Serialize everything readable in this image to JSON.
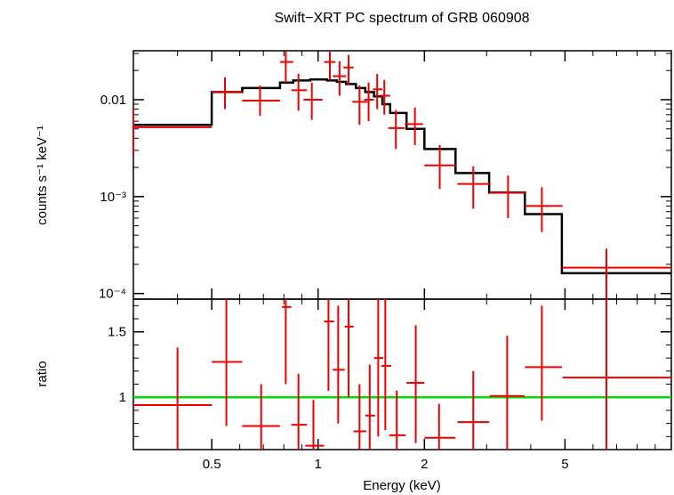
{
  "chart_data": [
    {
      "type": "scatter",
      "panel": "spectrum",
      "title": "Swift−XRT PC spectrum of GRB 060908",
      "ylabel": "counts s⁻¹ keV⁻¹",
      "xscale": "log",
      "yscale": "log",
      "xlim": [
        0.3,
        10
      ],
      "ylim": [
        8.75e-05,
        0.032
      ],
      "ytick_labels": [
        "0.01",
        "10⁻³",
        "10⁻⁴"
      ],
      "ytick_values": [
        0.01,
        0.001,
        0.0001
      ],
      "colors": {
        "data": "#ee0000",
        "model": "#000000"
      },
      "data": [
        {
          "x": 0.3,
          "xlo": 0.3,
          "xhi": 0.5,
          "y": 0.0052,
          "ylo": 0.0027,
          "yhi": 0.008
        },
        {
          "x": 0.545,
          "xlo": 0.5,
          "xhi": 0.61,
          "y": 0.012,
          "ylo": 0.008,
          "yhi": 0.017
        },
        {
          "x": 0.685,
          "xlo": 0.61,
          "xhi": 0.78,
          "y": 0.0098,
          "ylo": 0.0068,
          "yhi": 0.014
        },
        {
          "x": 0.81,
          "xlo": 0.78,
          "xhi": 0.85,
          "y": 0.0245,
          "ylo": 0.015,
          "yhi": 0.032
        },
        {
          "x": 0.88,
          "xlo": 0.84,
          "xhi": 0.93,
          "y": 0.0125,
          "ylo": 0.0077,
          "yhi": 0.0185
        },
        {
          "x": 0.96,
          "xlo": 0.91,
          "xhi": 1.03,
          "y": 0.01,
          "ylo": 0.0062,
          "yhi": 0.015
        },
        {
          "x": 1.08,
          "xlo": 1.04,
          "xhi": 1.12,
          "y": 0.0245,
          "ylo": 0.016,
          "yhi": 0.032
        },
        {
          "x": 1.15,
          "xlo": 1.1,
          "xhi": 1.2,
          "y": 0.0175,
          "ylo": 0.011,
          "yhi": 0.025
        },
        {
          "x": 1.22,
          "xlo": 1.18,
          "xhi": 1.26,
          "y": 0.0215,
          "ylo": 0.014,
          "yhi": 0.029
        },
        {
          "x": 1.31,
          "xlo": 1.25,
          "xhi": 1.38,
          "y": 0.0095,
          "ylo": 0.0055,
          "yhi": 0.014
        },
        {
          "x": 1.39,
          "xlo": 1.35,
          "xhi": 1.44,
          "y": 0.01,
          "ylo": 0.006,
          "yhi": 0.015
        },
        {
          "x": 1.47,
          "xlo": 1.43,
          "xhi": 1.52,
          "y": 0.0128,
          "ylo": 0.008,
          "yhi": 0.0185
        },
        {
          "x": 1.54,
          "xlo": 1.5,
          "xhi": 1.6,
          "y": 0.011,
          "ylo": 0.007,
          "yhi": 0.016
        },
        {
          "x": 1.66,
          "xlo": 1.58,
          "xhi": 1.76,
          "y": 0.0051,
          "ylo": 0.0031,
          "yhi": 0.0078
        },
        {
          "x": 1.88,
          "xlo": 1.76,
          "xhi": 1.98,
          "y": 0.0056,
          "ylo": 0.0034,
          "yhi": 0.0083
        },
        {
          "x": 2.21,
          "xlo": 2.0,
          "xhi": 2.46,
          "y": 0.0021,
          "ylo": 0.0012,
          "yhi": 0.0034
        },
        {
          "x": 2.75,
          "xlo": 2.48,
          "xhi": 3.08,
          "y": 0.00135,
          "ylo": 0.00075,
          "yhi": 0.00205
        },
        {
          "x": 3.45,
          "xlo": 3.06,
          "xhi": 3.85,
          "y": 0.0011,
          "ylo": 0.0006,
          "yhi": 0.00165
        },
        {
          "x": 4.3,
          "xlo": 3.85,
          "xhi": 4.92,
          "y": 0.0008,
          "ylo": 0.00043,
          "yhi": 0.00125
        },
        {
          "x": 6.55,
          "xlo": 4.92,
          "xhi": 10.0,
          "y": 0.000185,
          "ylo": 8.5e-05,
          "yhi": 0.00029
        }
      ],
      "model_steps": [
        {
          "xlo": 0.3,
          "xhi": 0.5,
          "y": 0.0055
        },
        {
          "xlo": 0.5,
          "xhi": 0.61,
          "y": 0.012
        },
        {
          "xlo": 0.61,
          "xhi": 0.78,
          "y": 0.0132
        },
        {
          "xlo": 0.78,
          "xhi": 0.85,
          "y": 0.015
        },
        {
          "xlo": 0.85,
          "xhi": 0.95,
          "y": 0.0158
        },
        {
          "xlo": 0.95,
          "xhi": 1.06,
          "y": 0.0162
        },
        {
          "xlo": 1.06,
          "xhi": 1.13,
          "y": 0.0158
        },
        {
          "xlo": 1.13,
          "xhi": 1.2,
          "y": 0.0153
        },
        {
          "xlo": 1.2,
          "xhi": 1.28,
          "y": 0.0145
        },
        {
          "xlo": 1.28,
          "xhi": 1.36,
          "y": 0.0132
        },
        {
          "xlo": 1.36,
          "xhi": 1.44,
          "y": 0.012
        },
        {
          "xlo": 1.44,
          "xhi": 1.52,
          "y": 0.0108
        },
        {
          "xlo": 1.52,
          "xhi": 1.6,
          "y": 0.009
        },
        {
          "xlo": 1.6,
          "xhi": 1.78,
          "y": 0.0073
        },
        {
          "xlo": 1.78,
          "xhi": 2.0,
          "y": 0.005
        },
        {
          "xlo": 2.0,
          "xhi": 2.45,
          "y": 0.0031
        },
        {
          "xlo": 2.45,
          "xhi": 3.05,
          "y": 0.00175
        },
        {
          "xlo": 3.05,
          "xhi": 3.85,
          "y": 0.0011
        },
        {
          "xlo": 3.85,
          "xhi": 4.9,
          "y": 0.00066
        },
        {
          "xlo": 4.9,
          "xhi": 10.0,
          "y": 0.000162
        }
      ]
    },
    {
      "type": "scatter",
      "panel": "ratio",
      "xlabel": "Energy (keV)",
      "ylabel": "ratio",
      "xscale": "log",
      "xlim": [
        0.3,
        10
      ],
      "ylim": [
        0.6,
        1.75
      ],
      "xtick_labels": [
        "0.5",
        "1",
        "2",
        "5"
      ],
      "xtick_values": [
        0.5,
        1,
        2,
        5
      ],
      "ytick_labels": [
        "1",
        "1.5"
      ],
      "ytick_values": [
        1,
        1.5
      ],
      "reference_line": 1,
      "colors": {
        "data": "#ee0000",
        "reference": "#00dd00"
      },
      "data": [
        {
          "x": 0.4,
          "xlo": 0.3,
          "xhi": 0.5,
          "y": 0.94,
          "ylo": 0.6,
          "yhi": 1.38
        },
        {
          "x": 0.55,
          "xlo": 0.5,
          "xhi": 0.61,
          "y": 1.27,
          "ylo": 0.78,
          "yhi": 1.75
        },
        {
          "x": 0.69,
          "xlo": 0.61,
          "xhi": 0.78,
          "y": 0.78,
          "ylo": 0.6,
          "yhi": 1.1
        },
        {
          "x": 0.81,
          "xlo": 0.79,
          "xhi": 0.84,
          "y": 1.69,
          "ylo": 1.1,
          "yhi": 1.75
        },
        {
          "x": 0.88,
          "xlo": 0.84,
          "xhi": 0.93,
          "y": 0.79,
          "ylo": 0.6,
          "yhi": 1.18
        },
        {
          "x": 0.97,
          "xlo": 0.92,
          "xhi": 1.04,
          "y": 0.63,
          "ylo": 0.6,
          "yhi": 0.98
        },
        {
          "x": 1.07,
          "xlo": 1.04,
          "xhi": 1.11,
          "y": 1.58,
          "ylo": 1.05,
          "yhi": 1.75
        },
        {
          "x": 1.14,
          "xlo": 1.1,
          "xhi": 1.19,
          "y": 1.21,
          "ylo": 0.8,
          "yhi": 1.7
        },
        {
          "x": 1.22,
          "xlo": 1.19,
          "xhi": 1.26,
          "y": 1.54,
          "ylo": 1.0,
          "yhi": 1.75
        },
        {
          "x": 1.31,
          "xlo": 1.26,
          "xhi": 1.37,
          "y": 0.74,
          "ylo": 0.6,
          "yhi": 1.1
        },
        {
          "x": 1.4,
          "xlo": 1.36,
          "xhi": 1.45,
          "y": 0.86,
          "ylo": 0.6,
          "yhi": 1.25
        },
        {
          "x": 1.48,
          "xlo": 1.44,
          "xhi": 1.53,
          "y": 1.3,
          "ylo": 0.7,
          "yhi": 1.75
        },
        {
          "x": 1.55,
          "xlo": 1.51,
          "xhi": 1.61,
          "y": 1.24,
          "ylo": 0.75,
          "yhi": 1.75
        },
        {
          "x": 1.67,
          "xlo": 1.59,
          "xhi": 1.77,
          "y": 0.71,
          "ylo": 0.6,
          "yhi": 1.05
        },
        {
          "x": 1.89,
          "xlo": 1.78,
          "xhi": 2.0,
          "y": 1.11,
          "ylo": 0.65,
          "yhi": 1.55
        },
        {
          "x": 2.2,
          "xlo": 2.0,
          "xhi": 2.45,
          "y": 0.69,
          "ylo": 0.6,
          "yhi": 0.95
        },
        {
          "x": 2.75,
          "xlo": 2.48,
          "xhi": 3.05,
          "y": 0.81,
          "ylo": 0.6,
          "yhi": 1.2
        },
        {
          "x": 3.43,
          "xlo": 3.06,
          "xhi": 3.84,
          "y": 1.01,
          "ylo": 0.6,
          "yhi": 1.47
        },
        {
          "x": 4.3,
          "xlo": 3.85,
          "xhi": 4.9,
          "y": 1.23,
          "ylo": 0.82,
          "yhi": 1.7
        },
        {
          "x": 6.55,
          "xlo": 4.92,
          "xhi": 10.0,
          "y": 1.15,
          "ylo": 0.6,
          "yhi": 1.75
        }
      ]
    }
  ]
}
